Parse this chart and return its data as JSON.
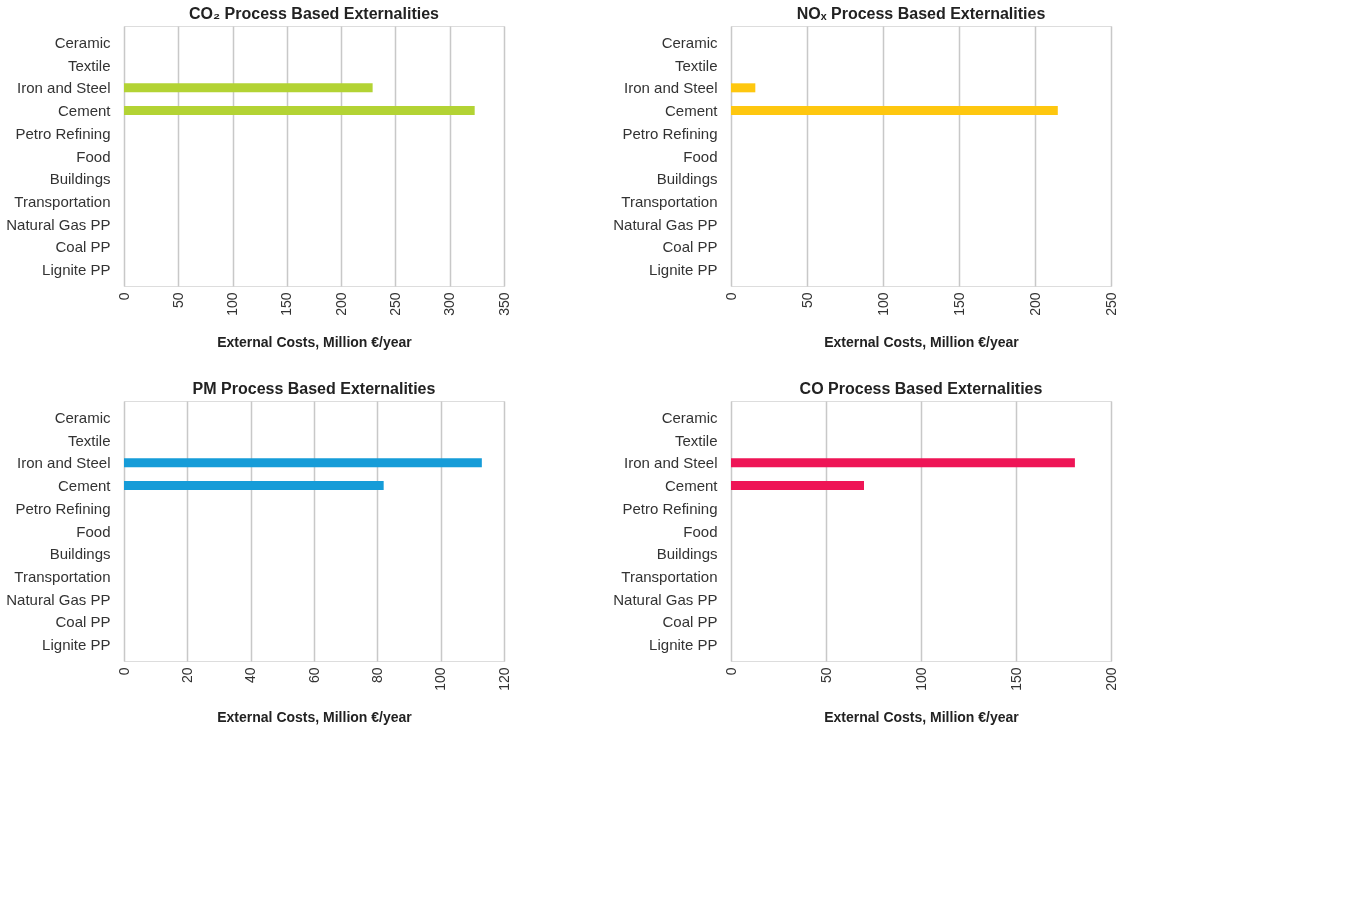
{
  "chart_data": [
    {
      "type": "bar",
      "orientation": "horizontal",
      "title": "CO₂ Process Based Externalities",
      "xlabel": "External Costs, Million €/year",
      "categories": [
        "Ceramic",
        "Textile",
        "Iron and Steel",
        "Cement",
        "Petro Refining",
        "Food",
        "Buildings",
        "Transportation",
        "Natural Gas PP",
        "Coal PP",
        "Lignite PP"
      ],
      "series": [
        {
          "color": "#b3d334",
          "values": [
            null,
            null,
            229,
            323,
            null,
            null,
            null,
            null,
            null,
            null,
            null
          ]
        }
      ],
      "xlim": [
        0,
        350
      ],
      "xticks": [
        0,
        50,
        100,
        150,
        200,
        250,
        300,
        350
      ],
      "grid": "x",
      "legend": false
    },
    {
      "type": "bar",
      "orientation": "horizontal",
      "title": "NOₓ Process Based Externalities",
      "xlabel": "External Costs, Million €/year",
      "categories": [
        "Ceramic",
        "Textile",
        "Iron and Steel",
        "Cement",
        "Petro Refining",
        "Food",
        "Buildings",
        "Transportation",
        "Natural Gas PP",
        "Coal PP",
        "Lignite PP"
      ],
      "series": [
        {
          "color": "#fec70f",
          "values": [
            null,
            null,
            16,
            215,
            null,
            null,
            null,
            null,
            null,
            null,
            null
          ]
        }
      ],
      "xlim": [
        0,
        250
      ],
      "xticks": [
        0,
        50,
        100,
        150,
        200,
        250
      ],
      "grid": "x",
      "legend": false
    },
    {
      "type": "bar",
      "orientation": "horizontal",
      "title": "PM Process Based Externalities",
      "xlabel": "External Costs, Million €/year",
      "categories": [
        "Ceramic",
        "Textile",
        "Iron and Steel",
        "Cement",
        "Petro Refining",
        "Food",
        "Buildings",
        "Transportation",
        "Natural Gas PP",
        "Coal PP",
        "Lignite PP"
      ],
      "series": [
        {
          "color": "#169cd8",
          "values": [
            null,
            null,
            113,
            82,
            null,
            null,
            null,
            null,
            null,
            null,
            null
          ]
        }
      ],
      "xlim": [
        0,
        120
      ],
      "xticks": [
        0,
        20,
        40,
        60,
        80,
        100,
        120
      ],
      "grid": "x",
      "legend": false
    },
    {
      "type": "bar",
      "orientation": "horizontal",
      "title": "CO Process Based Externalities",
      "xlabel": "External Costs, Million €/year",
      "categories": [
        "Ceramic",
        "Textile",
        "Iron and Steel",
        "Cement",
        "Petro Refining",
        "Food",
        "Buildings",
        "Transportation",
        "Natural Gas PP",
        "Coal PP",
        "Lignite PP"
      ],
      "series": [
        {
          "color": "#ee1556",
          "values": [
            null,
            null,
            181,
            70,
            null,
            null,
            null,
            null,
            null,
            null,
            null
          ]
        }
      ],
      "xlim": [
        0,
        200
      ],
      "xticks": [
        0,
        50,
        100,
        150,
        200
      ],
      "grid": "x",
      "legend": false
    }
  ]
}
